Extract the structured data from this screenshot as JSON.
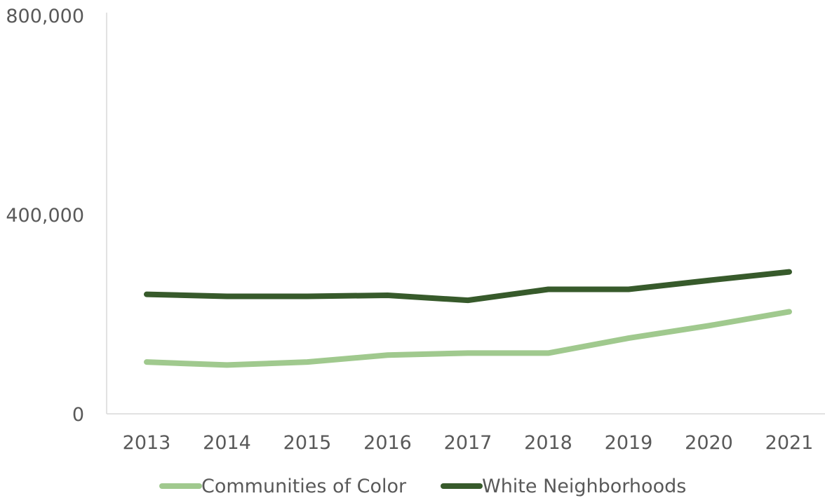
{
  "chart_data": {
    "type": "line",
    "categories": [
      "2013",
      "2014",
      "2015",
      "2016",
      "2017",
      "2018",
      "2019",
      "2020",
      "2021"
    ],
    "series": [
      {
        "name": "Communities of Color",
        "color": "#a0c98e",
        "values": [
          104000,
          98000,
          104000,
          118000,
          122000,
          122000,
          152000,
          177000,
          205000
        ]
      },
      {
        "name": "White Neighborhoods",
        "color": "#375a2b",
        "values": [
          240000,
          236000,
          236000,
          238000,
          228000,
          250000,
          250000,
          268000,
          285000
        ]
      }
    ],
    "y_ticks": [
      "0",
      "400,000",
      "800,000"
    ],
    "y_tick_values": [
      0,
      400000,
      800000
    ],
    "ylim": [
      0,
      800000
    ],
    "grid": false,
    "legend_position": "bottom",
    "title": "",
    "xlabel": "",
    "ylabel": ""
  }
}
